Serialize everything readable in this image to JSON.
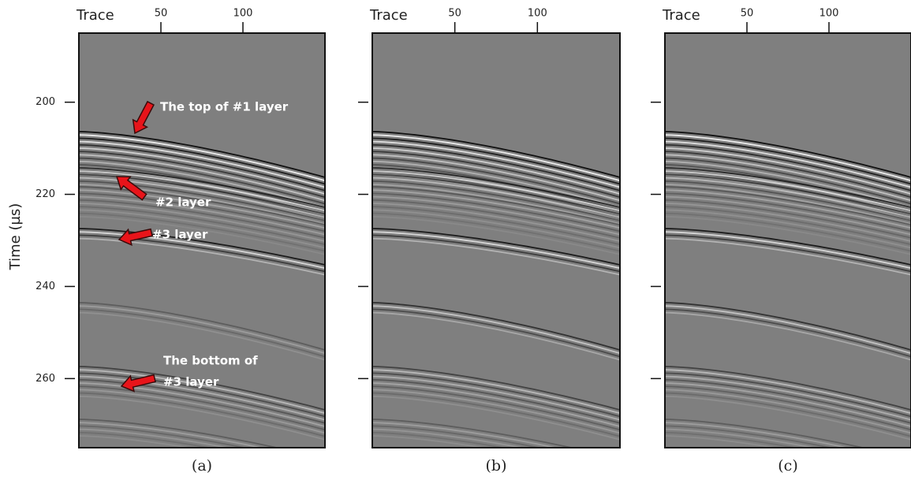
{
  "chart_data": [
    {
      "type": "seismic",
      "x_label": "Trace",
      "y_label": "Time (µs)",
      "caption": "(a)",
      "xlim": [
        0,
        150
      ],
      "xticks": [
        50,
        100
      ],
      "ylim": [
        185,
        275
      ],
      "yticks": [
        200,
        220,
        240,
        260
      ],
      "ytick_labels": true,
      "annotations": [
        "The top of #1 layer",
        "#2 layer",
        "#3 layer",
        "The bottom of",
        "#3 layer"
      ]
    },
    {
      "type": "seismic",
      "x_label": "Trace",
      "caption": "(b)",
      "xlim": [
        0,
        150
      ],
      "xticks": [
        50,
        100
      ],
      "ylim": [
        185,
        275
      ],
      "yticks": [
        200,
        220,
        240,
        260
      ],
      "ytick_labels": false
    },
    {
      "type": "seismic",
      "x_label": "Trace",
      "caption": "(c)",
      "xlim": [
        0,
        150
      ],
      "xticks": [
        50,
        100
      ],
      "ylim": [
        185,
        275
      ],
      "yticks": [
        200,
        220,
        240,
        260
      ],
      "ytick_labels": false
    }
  ]
}
